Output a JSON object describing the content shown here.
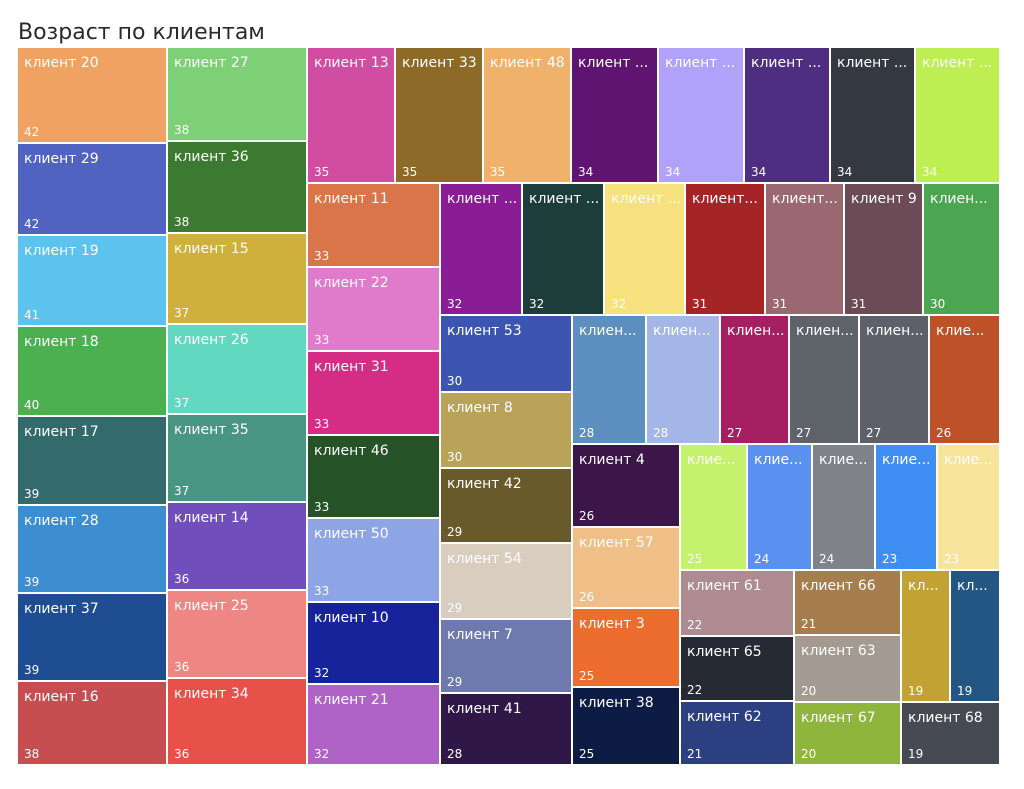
{
  "title": "Возраст по клиентам",
  "chart_data": {
    "type": "treemap",
    "title": "Возраст по клиентам",
    "items": [
      {
        "label": "клиент 20",
        "value": 42,
        "color": "#f0a262"
      },
      {
        "label": "клиент 29",
        "value": 42,
        "color": "#5063c0"
      },
      {
        "label": "клиент 19",
        "value": 41,
        "color": "#5bc3ee"
      },
      {
        "label": "клиент 18",
        "value": 40,
        "color": "#4caf50"
      },
      {
        "label": "клиент 17",
        "value": 39,
        "color": "#336b6d"
      },
      {
        "label": "клиент 28",
        "value": 39,
        "color": "#3d8ed0"
      },
      {
        "label": "клиент 37",
        "value": 39,
        "color": "#1f4d92"
      },
      {
        "label": "клиент 16",
        "value": 38,
        "color": "#c74e50"
      },
      {
        "label": "клиент 27",
        "value": 38,
        "color": "#7dd076"
      },
      {
        "label": "клиент 36",
        "value": 38,
        "color": "#3d7a31"
      },
      {
        "label": "клиент 15",
        "value": 37,
        "color": "#d0b03d"
      },
      {
        "label": "клиент 26",
        "value": 37,
        "color": "#63d8c0"
      },
      {
        "label": "клиент 35",
        "value": 37,
        "color": "#489582"
      },
      {
        "label": "клиент 14",
        "value": 36,
        "color": "#704fbc"
      },
      {
        "label": "клиент 25",
        "value": 36,
        "color": "#ee8683"
      },
      {
        "label": "клиент 34",
        "value": 36,
        "color": "#e7514a"
      },
      {
        "label": "клиент 13",
        "value": 35,
        "color": "#d04da1"
      },
      {
        "label": "клиент 33",
        "value": 35,
        "color": "#8e6a28"
      },
      {
        "label": "клиент 48",
        "value": 35,
        "color": "#f0b26b"
      },
      {
        "label": "клиент ...",
        "value": 34,
        "color": "#5e1470"
      },
      {
        "label": "клиент ...",
        "value": 34,
        "color": "#b0a2fa"
      },
      {
        "label": "клиент ...",
        "value": 34,
        "color": "#4d2e80"
      },
      {
        "label": "клиент ...",
        "value": 34,
        "color": "#343841"
      },
      {
        "label": "клиент ...",
        "value": 34,
        "color": "#bdef52"
      },
      {
        "label": "клиент 11",
        "value": 33,
        "color": "#d97548"
      },
      {
        "label": "клиент 22",
        "value": 33,
        "color": "#e07bcc"
      },
      {
        "label": "клиент 31",
        "value": 33,
        "color": "#d52c86"
      },
      {
        "label": "клиент 46",
        "value": 33,
        "color": "#255227"
      },
      {
        "label": "клиент 50",
        "value": 33,
        "color": "#8ea5e5"
      },
      {
        "label": "клиент 10",
        "value": 32,
        "color": "#17239b"
      },
      {
        "label": "клиент 21",
        "value": 32,
        "color": "#b063c7"
      },
      {
        "label": "клиент ...",
        "value": 32,
        "color": "#8a1d96"
      },
      {
        "label": "клиент ...",
        "value": 32,
        "color": "#1d3d3a"
      },
      {
        "label": "клиент ...",
        "value": 32,
        "color": "#f6e17e"
      },
      {
        "label": "клиент...",
        "value": 31,
        "color": "#a52527"
      },
      {
        "label": "клиент...",
        "value": 31,
        "color": "#9a6870"
      },
      {
        "label": "клиент 9",
        "value": 31,
        "color": "#6b4c56"
      },
      {
        "label": "клиен...",
        "value": 30,
        "color": "#4ca550"
      },
      {
        "label": "клиент 53",
        "value": 30,
        "color": "#3b55b1"
      },
      {
        "label": "клиент 8",
        "value": 30,
        "color": "#b9a359"
      },
      {
        "label": "клиент 42",
        "value": 29,
        "color": "#695a2b"
      },
      {
        "label": "клиент 54",
        "value": 29,
        "color": "#d9cdc0"
      },
      {
        "label": "клиент 7",
        "value": 29,
        "color": "#6e7aad"
      },
      {
        "label": "клиент 41",
        "value": 28,
        "color": "#2f1848"
      },
      {
        "label": "клиен...",
        "value": 28,
        "color": "#5c8fc0"
      },
      {
        "label": "клиен...",
        "value": 28,
        "color": "#a3b6e7"
      },
      {
        "label": "клиен...",
        "value": 27,
        "color": "#a51f62"
      },
      {
        "label": "клиен...",
        "value": 27,
        "color": "#5e6269"
      },
      {
        "label": "клиен...",
        "value": 27,
        "color": "#5d6068"
      },
      {
        "label": "клие...",
        "value": 26,
        "color": "#bd5228"
      },
      {
        "label": "клиент 4",
        "value": 26,
        "color": "#3d1649"
      },
      {
        "label": "клиент 57",
        "value": 26,
        "color": "#f0be87"
      },
      {
        "label": "клиент 3",
        "value": 25,
        "color": "#ed6d2f"
      },
      {
        "label": "клиент 38",
        "value": 25,
        "color": "#0d1c45"
      },
      {
        "label": "клие...",
        "value": 25,
        "color": "#c5f26c"
      },
      {
        "label": "клие...",
        "value": 24,
        "color": "#5a91f1"
      },
      {
        "label": "клие...",
        "value": 24,
        "color": "#7f8289"
      },
      {
        "label": "клие...",
        "value": 23,
        "color": "#3f8ef3"
      },
      {
        "label": "клие...",
        "value": 23,
        "color": "#f6e49a"
      },
      {
        "label": "клиент 61",
        "value": 22,
        "color": "#ae8b90"
      },
      {
        "label": "клиент 65",
        "value": 22,
        "color": "#262a34"
      },
      {
        "label": "клиент 62",
        "value": 21,
        "color": "#2c3f80"
      },
      {
        "label": "клиент 66",
        "value": 21,
        "color": "#a67e4e"
      },
      {
        "label": "клиент 63",
        "value": 20,
        "color": "#a39a91"
      },
      {
        "label": "клиент 67",
        "value": 20,
        "color": "#8fb53d"
      },
      {
        "label": "кл...",
        "value": 19,
        "color": "#c2a232"
      },
      {
        "label": "кл...",
        "value": 19,
        "color": "#245683"
      },
      {
        "label": "клиент 68",
        "value": 19,
        "color": "#464b53"
      }
    ]
  }
}
